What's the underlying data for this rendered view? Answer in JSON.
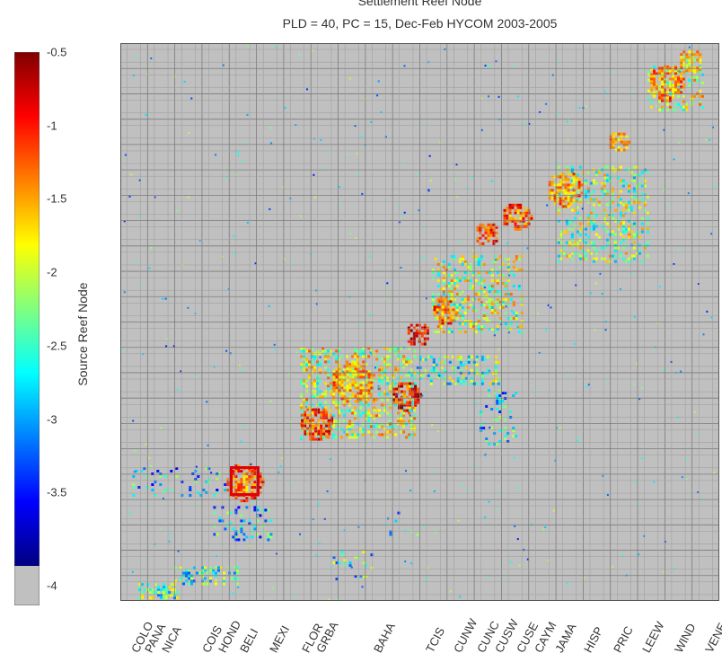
{
  "chart_data": {
    "type": "heatmap",
    "title": "Settlement Reef Node",
    "subtitle": "PLD = 40, PC = 15, Dec-Feb HYCOM 2003-2005",
    "ylabel": "Source Reef Node",
    "colorbar": {
      "ticks": [
        -0.5,
        -1,
        -1.5,
        -2,
        -2.5,
        -3,
        -3.5,
        -4
      ],
      "range": [
        -4,
        -0.5
      ],
      "nodata_color": "#c0c0c0",
      "scale": "log10 connectivity"
    },
    "x_regions": [
      "COLO",
      "PANA",
      "NICA",
      "COIS",
      "HOND",
      "BELI",
      "MEXI",
      "FLOR",
      "GRBA",
      "BAHA",
      "TCIS",
      "CUNW",
      "CUNC",
      "CUSW",
      "CUSE",
      "CAYM",
      "JAMA",
      "HISP",
      "PRIC",
      "LEEW",
      "WIND",
      "VENE"
    ],
    "highlight": {
      "region": "BELI",
      "color": "#e0000a"
    },
    "clusters": [
      {
        "x": [
          0.3,
          0.95
        ],
        "y": [
          0.32,
          0.07
        ],
        "density": 0.55,
        "level": -2.4
      },
      {
        "x": [
          0.9,
          1.95
        ],
        "y": [
          0.62,
          0.32
        ],
        "density": 0.45,
        "level": -2.5
      },
      {
        "x": [
          1.55,
          2.5
        ],
        "y": [
          1.7,
          1.08
        ],
        "density": 0.22,
        "level": -2.8
      },
      {
        "x": [
          3.0,
          4.9
        ],
        "y": [
          4.55,
          2.95
        ],
        "density": 0.42,
        "level": -2.0
      },
      {
        "x": [
          4.9,
          6.3
        ],
        "y": [
          4.4,
          3.9
        ],
        "density": 0.3,
        "level": -2.4
      },
      {
        "x": [
          5.2,
          6.7
        ],
        "y": [
          6.2,
          4.8
        ],
        "density": 0.35,
        "level": -2.1
      },
      {
        "x": [
          7.3,
          8.8
        ],
        "y": [
          7.8,
          6.1
        ],
        "density": 0.32,
        "level": -2.2
      },
      {
        "x": [
          8.8,
          9.7
        ],
        "y": [
          9.6,
          8.8
        ],
        "density": 0.32,
        "level": -2.0
      },
      {
        "x": [
          0.2,
          1.95
        ],
        "y": [
          2.4,
          1.9
        ],
        "density": 0.12,
        "level": -2.9
      },
      {
        "x": [
          3.5,
          4.2
        ],
        "y": [
          0.9,
          0.4
        ],
        "density": 0.12,
        "level": -2.6
      },
      {
        "x": [
          6.0,
          6.6
        ],
        "y": [
          3.8,
          2.8
        ],
        "density": 0.18,
        "level": -2.8
      },
      {
        "x": [
          4.4,
          5.0
        ],
        "y": [
          1.6,
          1.2
        ],
        "density": 0.06,
        "level": -2.9
      }
    ],
    "hotspots": [
      {
        "x": 2.05,
        "y": 2.15,
        "r": 0.32,
        "level": -1.1
      },
      {
        "x": 3.25,
        "y": 3.2,
        "r": 0.28,
        "level": -1.0
      },
      {
        "x": 3.85,
        "y": 3.95,
        "r": 0.35,
        "level": -1.4
      },
      {
        "x": 4.75,
        "y": 3.7,
        "r": 0.25,
        "level": -0.9
      },
      {
        "x": 4.95,
        "y": 4.8,
        "r": 0.2,
        "level": -0.8
      },
      {
        "x": 5.4,
        "y": 5.2,
        "r": 0.22,
        "level": -1.2
      },
      {
        "x": 6.1,
        "y": 6.6,
        "r": 0.2,
        "level": -1.0
      },
      {
        "x": 6.6,
        "y": 6.9,
        "r": 0.25,
        "level": -1.1
      },
      {
        "x": 7.4,
        "y": 7.4,
        "r": 0.3,
        "level": -1.3
      },
      {
        "x": 8.3,
        "y": 8.25,
        "r": 0.18,
        "level": -1.4
      },
      {
        "x": 9.1,
        "y": 9.3,
        "r": 0.3,
        "level": -1.3
      },
      {
        "x": 9.5,
        "y": 9.7,
        "r": 0.2,
        "level": -1.6
      }
    ]
  }
}
